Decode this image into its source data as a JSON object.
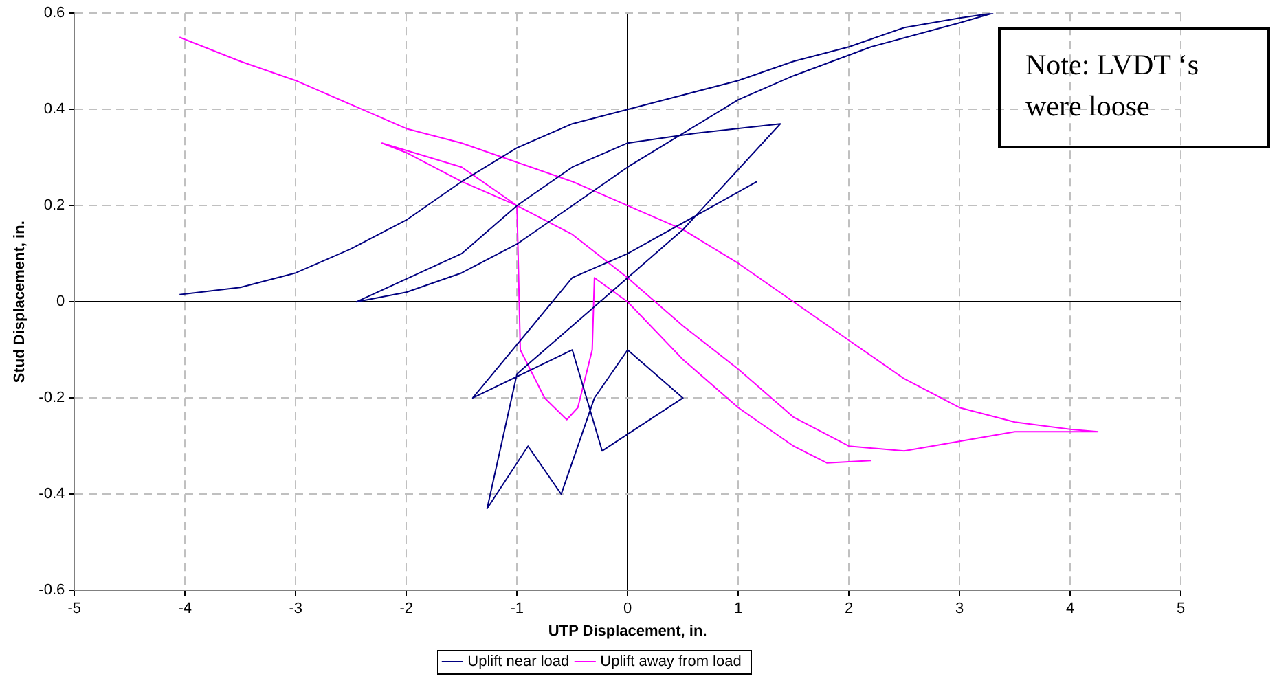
{
  "chart_data": {
    "type": "line",
    "xlabel": "UTP Displacement, in.",
    "ylabel": "Stud Displacement, in.",
    "xlim": [
      -5,
      5
    ],
    "xticks": [
      -5,
      -4,
      -3,
      -2,
      -1,
      0,
      1,
      2,
      3,
      4,
      5
    ],
    "ylim": [
      -0.6,
      0.6
    ],
    "yticks": [
      -0.6,
      -0.4,
      -0.2,
      0,
      0.2,
      0.4,
      0.6
    ],
    "grid": true,
    "legend": "bottom",
    "marker": "none",
    "line_style": "solid",
    "annotations": [
      "Note: LVDT ‘s were loose"
    ],
    "series": [
      {
        "name": "Uplift near load",
        "color": "#000080",
        "x": [
          -4.05,
          -3.5,
          -3,
          -2.5,
          -2,
          -1.5,
          -1,
          -0.5,
          0,
          0.5,
          1,
          1.5,
          2,
          2.5,
          3,
          3.3,
          3,
          2.2,
          1.5,
          1,
          0.5,
          0,
          -0.5,
          -1,
          -1.5,
          -2,
          -2.45,
          -1.5,
          -1,
          -0.5,
          0,
          0.6,
          1.38,
          0.5,
          0,
          -0.5,
          -1,
          -1.27,
          -0.9,
          -0.6,
          -0.3,
          0,
          0.5,
          -0.23,
          -0.5,
          -1.4,
          -0.5,
          0,
          1.17
        ],
        "values": [
          0.015,
          0.03,
          0.06,
          0.11,
          0.17,
          0.25,
          0.32,
          0.37,
          0.4,
          0.43,
          0.46,
          0.5,
          0.53,
          0.57,
          0.59,
          0.6,
          0.58,
          0.53,
          0.47,
          0.42,
          0.35,
          0.28,
          0.2,
          0.12,
          0.06,
          0.02,
          0,
          0.1,
          0.2,
          0.28,
          0.33,
          0.35,
          0.37,
          0.15,
          0.05,
          -0.05,
          -0.15,
          -0.43,
          -0.3,
          -0.4,
          -0.2,
          -0.1,
          -0.2,
          -0.31,
          -0.1,
          -0.2,
          0.05,
          0.1,
          0.25
        ]
      },
      {
        "name": "Uplift away from load",
        "color": "#ff00ff",
        "x": [
          -4.05,
          -3.5,
          -3,
          -2.5,
          -2,
          -1.5,
          -1,
          -0.5,
          0,
          0.5,
          1,
          1.5,
          2,
          2.5,
          3,
          3.5,
          4,
          4.25,
          3.5,
          3,
          2.5,
          2,
          1.5,
          1,
          0.5,
          0,
          -0.5,
          -1,
          -1.5,
          -2,
          -2.22,
          -1.5,
          -1,
          -0.97,
          -0.75,
          -0.55,
          -0.45,
          -0.32,
          -0.3,
          0,
          0.5,
          1,
          1.5,
          1.8,
          2.2
        ],
        "values": [
          0.55,
          0.5,
          0.46,
          0.41,
          0.36,
          0.33,
          0.29,
          0.25,
          0.2,
          0.15,
          0.08,
          0,
          -0.08,
          -0.16,
          -0.22,
          -0.25,
          -0.265,
          -0.27,
          -0.27,
          -0.29,
          -0.31,
          -0.3,
          -0.24,
          -0.14,
          -0.05,
          0.05,
          0.14,
          0.2,
          0.25,
          0.31,
          0.33,
          0.28,
          0.2,
          -0.1,
          -0.2,
          -0.245,
          -0.22,
          -0.1,
          0.05,
          0,
          -0.12,
          -0.22,
          -0.3,
          -0.335,
          -0.33
        ]
      }
    ]
  }
}
